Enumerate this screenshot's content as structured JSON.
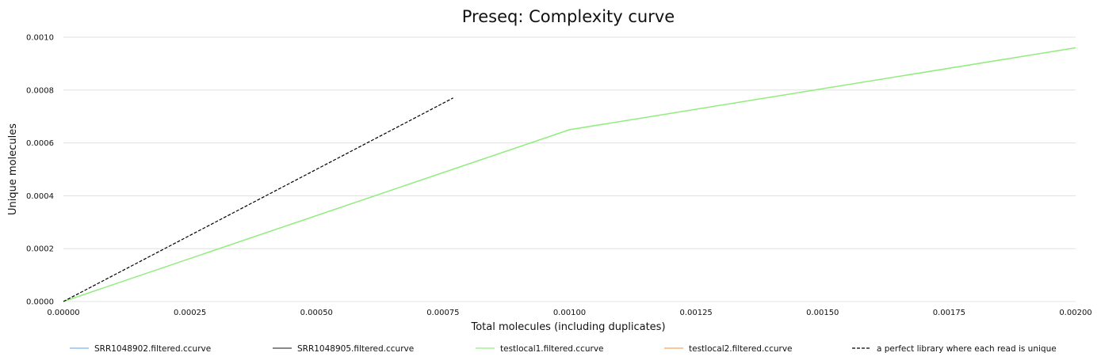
{
  "chart_data": {
    "type": "line",
    "title": "Preseq: Complexity curve",
    "xlabel": "Total molecules (including duplicates)",
    "ylabel": "Unique molecules",
    "xlim": [
      0,
      0.002
    ],
    "ylim": [
      0,
      0.001
    ],
    "x_ticks": [
      "0.00000",
      "0.00025",
      "0.00050",
      "0.00075",
      "0.00100",
      "0.00125",
      "0.00150",
      "0.00175",
      "0.00200"
    ],
    "y_ticks": [
      "0.0000",
      "0.0002",
      "0.0004",
      "0.0006",
      "0.0008",
      "0.0010"
    ],
    "grid": "horizontal",
    "legend_position": "bottom",
    "series": [
      {
        "name": "SRR1048902.filtered.ccurve",
        "color": "#7cb5ec",
        "style": "solid",
        "points": []
      },
      {
        "name": "SRR1048905.filtered.ccurve",
        "color": "#434348",
        "style": "solid",
        "points": []
      },
      {
        "name": "testlocal1.filtered.ccurve",
        "color": "#90ed7d",
        "style": "solid",
        "points": [
          [
            0,
            0
          ],
          [
            0.001,
            0.00065
          ],
          [
            0.002,
            0.00096
          ]
        ]
      },
      {
        "name": "testlocal2.filtered.ccurve",
        "color": "#f7a35c",
        "style": "solid",
        "points": []
      },
      {
        "name": "a perfect library where each read is unique",
        "color": "#000000",
        "style": "dashed",
        "points": [
          [
            0,
            0
          ],
          [
            0.00077,
            0.00077
          ]
        ]
      }
    ]
  }
}
